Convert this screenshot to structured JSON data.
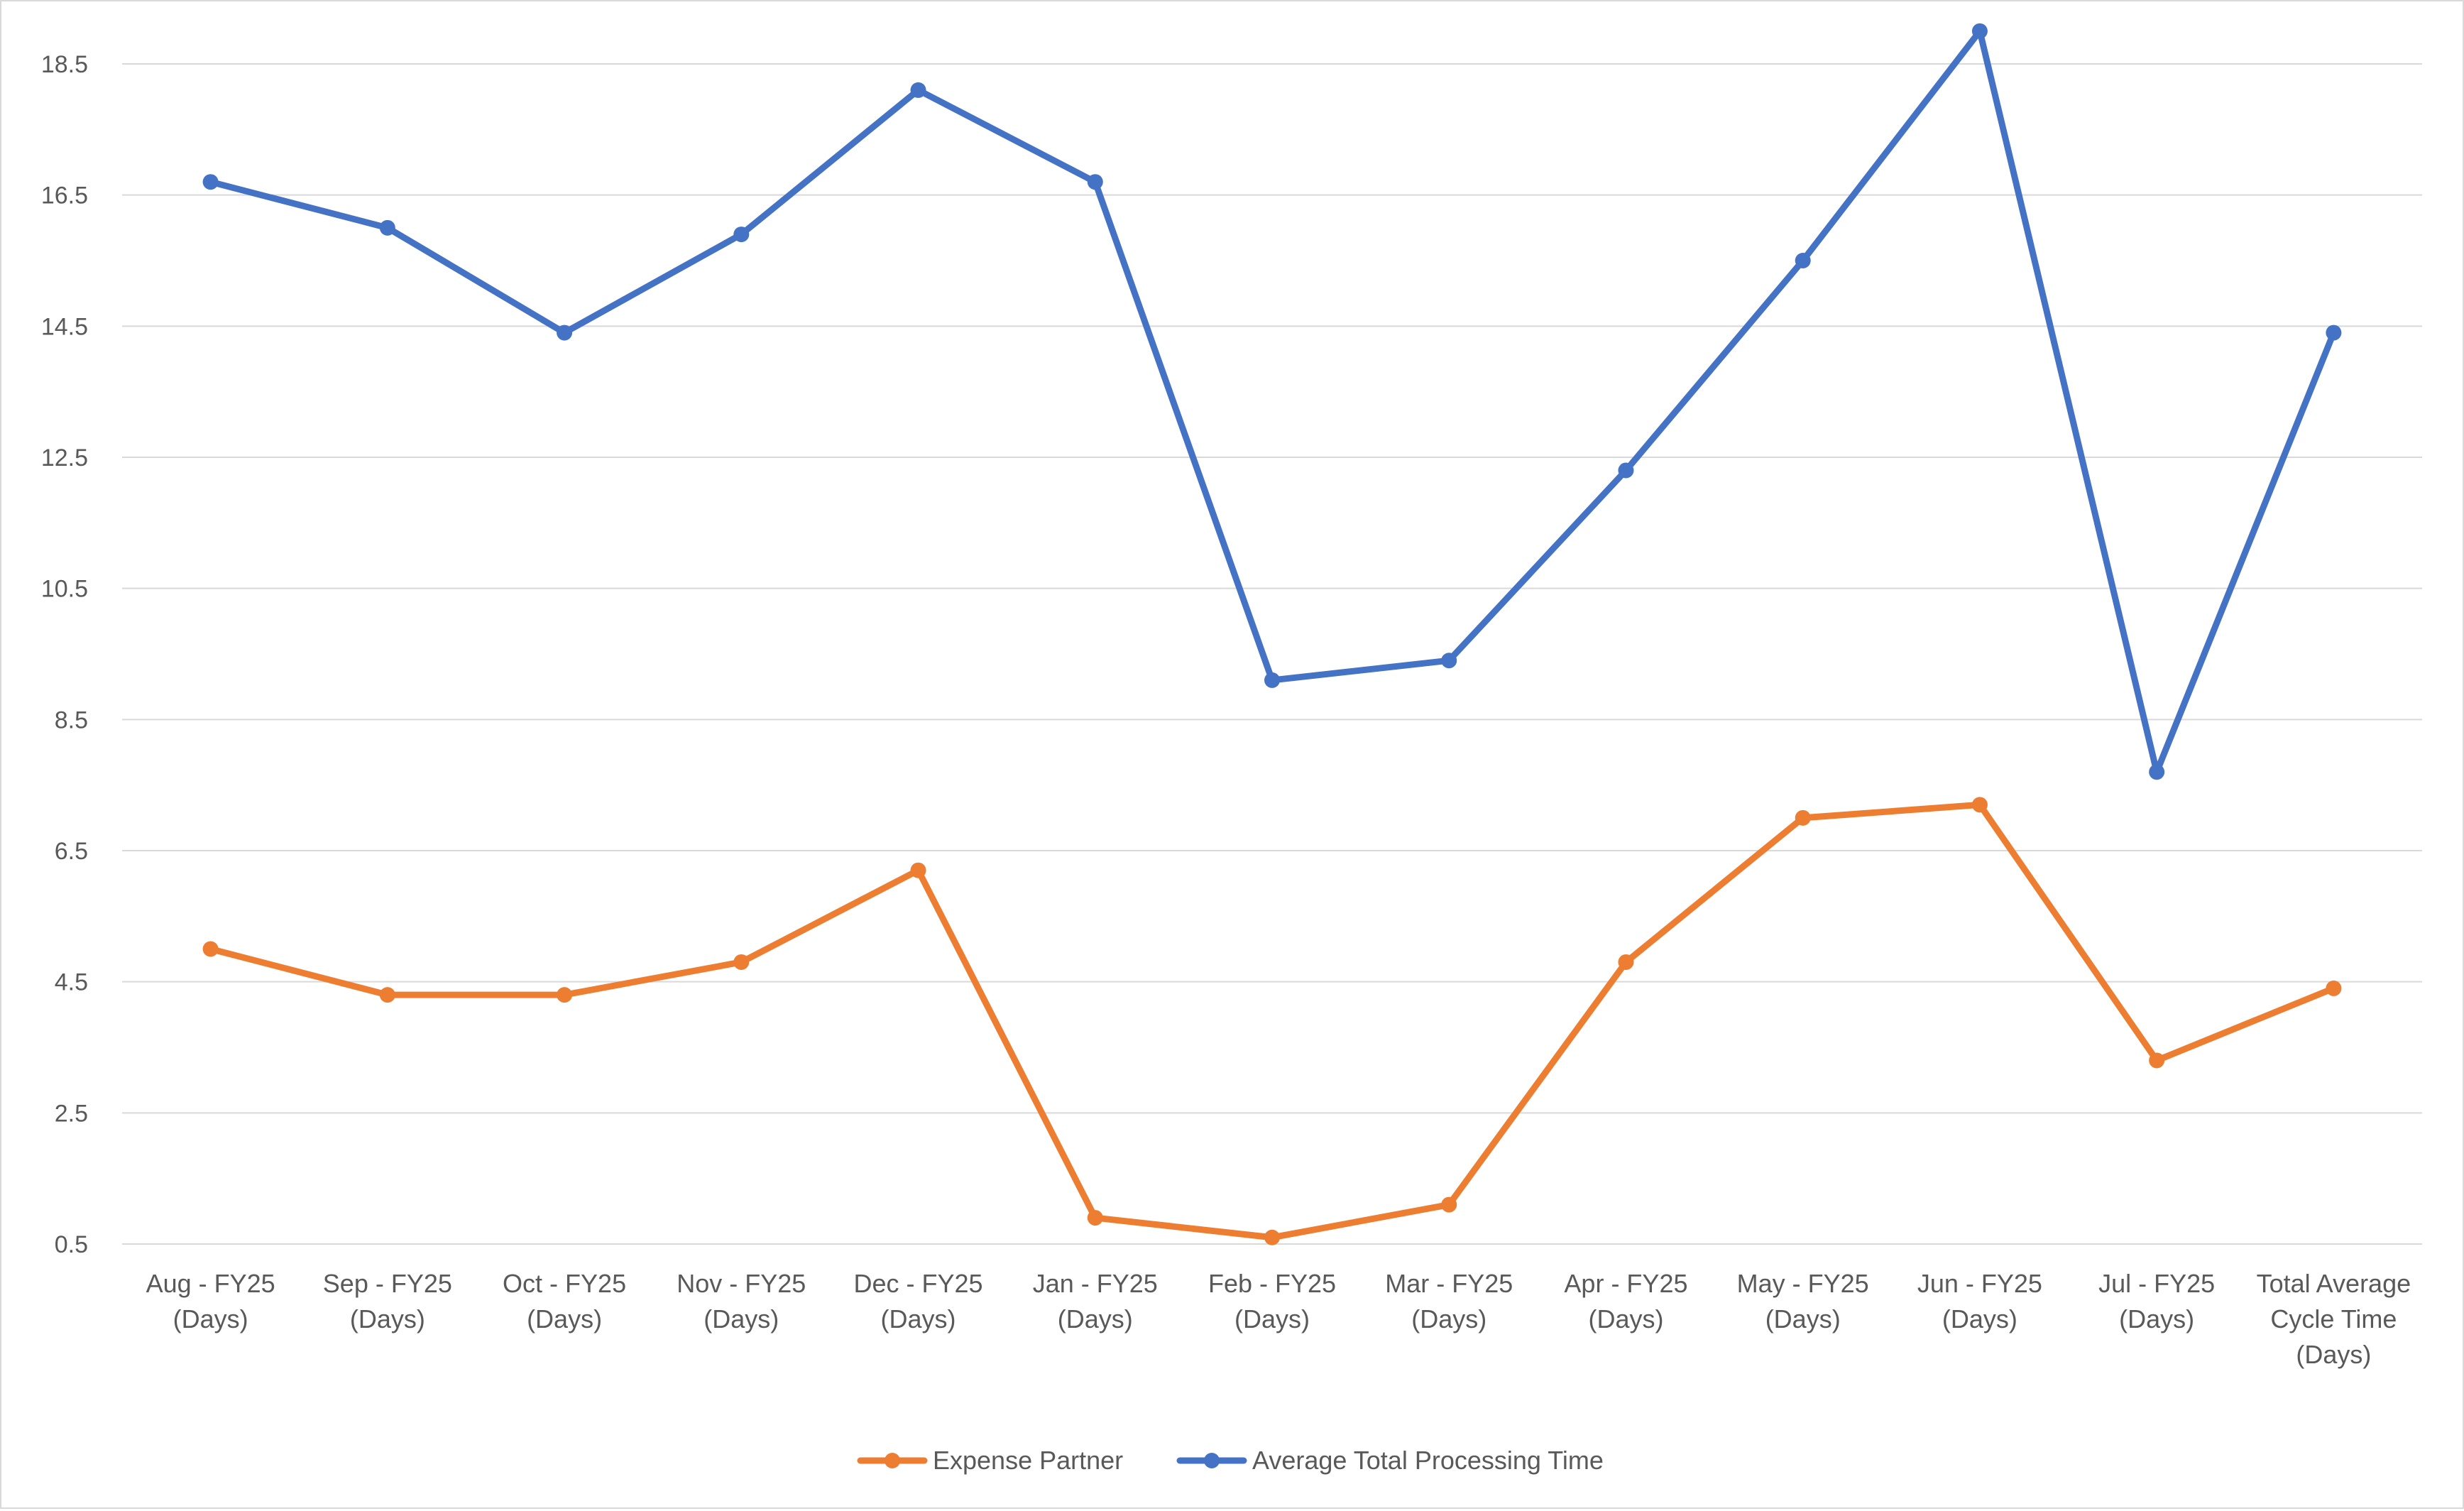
{
  "chart_data": {
    "type": "line",
    "title": "",
    "xlabel": "",
    "ylabel": "",
    "categories": [
      "Aug - FY25 (Days)",
      "Sep - FY25 (Days)",
      "Oct - FY25 (Days)",
      "Nov - FY25 (Days)",
      "Dec - FY25 (Days)",
      "Jan - FY25 (Days)",
      "Feb - FY25 (Days)",
      "Mar - FY25 (Days)",
      "Apr - FY25 (Days)",
      "May - FY25 (Days)",
      "Jun - FY25 (Days)",
      "Jul - FY25 (Days)",
      "Total Average Cycle Time (Days)"
    ],
    "category_lines": [
      [
        "Aug - FY25",
        "(Days)"
      ],
      [
        "Sep - FY25",
        "(Days)"
      ],
      [
        "Oct - FY25",
        "(Days)"
      ],
      [
        "Nov - FY25",
        "(Days)"
      ],
      [
        "Dec - FY25",
        "(Days)"
      ],
      [
        "Jan - FY25",
        "(Days)"
      ],
      [
        "Feb - FY25",
        "(Days)"
      ],
      [
        "Mar - FY25",
        "(Days)"
      ],
      [
        "Apr - FY25",
        "(Days)"
      ],
      [
        "May - FY25",
        "(Days)"
      ],
      [
        "Jun - FY25",
        "(Days)"
      ],
      [
        "Jul - FY25",
        "(Days)"
      ],
      [
        "Total Average",
        "Cycle Time",
        "(Days)"
      ]
    ],
    "ylim": [
      0.5,
      18.5
    ],
    "yticks": [
      0.5,
      2.5,
      4.5,
      6.5,
      8.5,
      10.5,
      12.5,
      14.5,
      16.5,
      18.5
    ],
    "ytick_labels": [
      "0.5",
      "2.5",
      "4.5",
      "6.5",
      "8.5",
      "10.5",
      "12.5",
      "14.5",
      "16.5",
      "18.5"
    ],
    "grid": true,
    "legend_position": "bottom",
    "series": [
      {
        "name": "Expense Partner",
        "color": "#ED7D31",
        "values": [
          5.0,
          4.3,
          4.3,
          4.8,
          6.2,
          0.9,
          0.6,
          1.1,
          4.8,
          7.0,
          7.2,
          3.3,
          4.4
        ]
      },
      {
        "name": "Average Total Processing Time",
        "color": "#4472C4",
        "values": [
          16.7,
          16.0,
          14.4,
          15.9,
          18.1,
          16.7,
          9.1,
          9.4,
          12.3,
          15.5,
          19.0,
          7.7,
          14.4
        ]
      }
    ]
  }
}
